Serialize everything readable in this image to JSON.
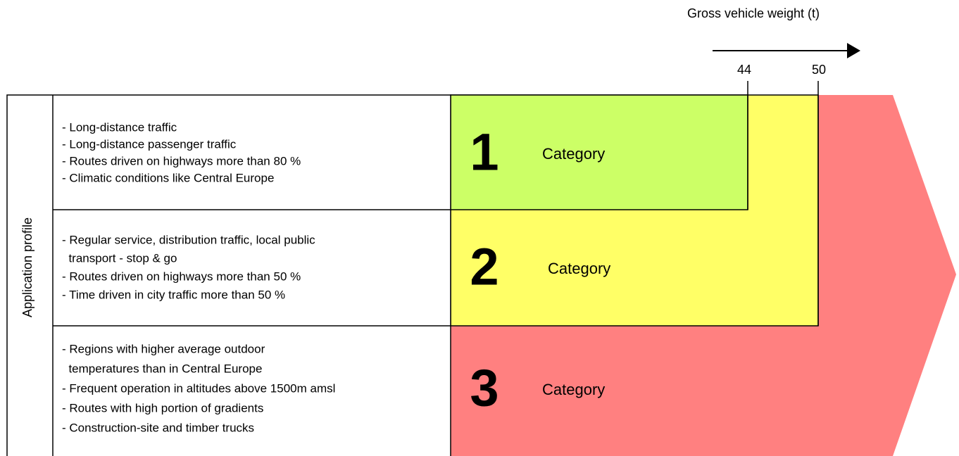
{
  "axis": {
    "label": "Gross vehicle weight (t)",
    "ticks": [
      44,
      50
    ]
  },
  "side_label": "Application profile",
  "rows": [
    {
      "lines": [
        "- Long-distance traffic",
        "- Long-distance passenger traffic",
        "- Routes driven on highways more than 80 %",
        "- Climatic conditions like Central Europe"
      ],
      "number": 1,
      "label": "Category"
    },
    {
      "lines": [
        "- Regular service, distribution traffic, local public",
        "  transport - stop & go",
        "- Routes driven on highways more than 50 %",
        "- Time driven in city traffic more than 50 %"
      ],
      "number": 2,
      "label": "Category"
    },
    {
      "lines": [
        "- Regions with higher average outdoor",
        "  temperatures than in Central Europe",
        "- Frequent operation in altitudes above 1500m amsl",
        "- Routes with high portion of gradients",
        "- Construction-site and timber trucks"
      ],
      "number": 3,
      "label": "Category"
    }
  ]
}
